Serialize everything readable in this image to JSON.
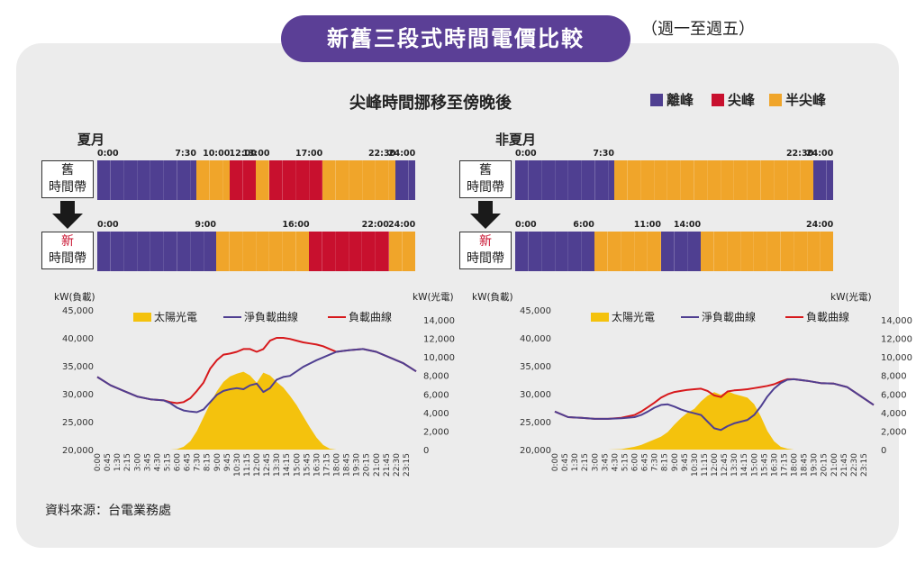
{
  "header": {
    "title": "新舊三段式時間電價比較",
    "note": "（週一至週五）"
  },
  "subtitle": "尖峰時間挪移至傍晚後",
  "legend": [
    {
      "label": "離峰",
      "color": "#4f3f91"
    },
    {
      "label": "尖峰",
      "color": "#c8102e"
    },
    {
      "label": "半尖峰",
      "color": "#f0a52a"
    }
  ],
  "colors": {
    "off": "#4f3f91",
    "peak": "#c8102e",
    "semi": "#f0a52a",
    "solar": "#f4c20d",
    "net": "#4f3f91",
    "load": "#d7191c"
  },
  "labels": {
    "old_band": "舊\n時間帶",
    "new_band_top": "新",
    "new_band_bottom": "時間帶",
    "old_top": "舊",
    "old_bottom": "時間帶"
  },
  "summer": {
    "title": "夏月",
    "old": {
      "ticks": [
        "0:00",
        "7:30",
        "10:00",
        "12:00",
        "13:00",
        "17:00",
        "22:30",
        "24:00"
      ],
      "segments": [
        [
          "off",
          0,
          7.5
        ],
        [
          "semi",
          7.5,
          10
        ],
        [
          "peak",
          10,
          12
        ],
        [
          "semi",
          12,
          13
        ],
        [
          "peak",
          13,
          17
        ],
        [
          "semi",
          17,
          22.5
        ],
        [
          "off",
          22.5,
          24
        ]
      ]
    },
    "new": {
      "ticks": [
        "0:00",
        "9:00",
        "16:00",
        "22:00",
        "24:00"
      ],
      "segments": [
        [
          "off",
          0,
          9
        ],
        [
          "semi",
          9,
          16
        ],
        [
          "peak",
          16,
          22
        ],
        [
          "semi",
          22,
          24
        ]
      ]
    }
  },
  "nonsummer": {
    "title": "非夏月",
    "old": {
      "ticks": [
        "0:00",
        "7:30",
        "22:30",
        "24:00"
      ],
      "segments": [
        [
          "off",
          0,
          7.5
        ],
        [
          "semi",
          7.5,
          22.5
        ],
        [
          "off",
          22.5,
          24
        ]
      ]
    },
    "new": {
      "ticks": [
        "0:00",
        "6:00",
        "11:00",
        "14:00",
        "24:00"
      ],
      "segments": [
        [
          "off",
          0,
          6
        ],
        [
          "semi",
          6,
          11
        ],
        [
          "off",
          11,
          14
        ],
        [
          "semi",
          14,
          24
        ]
      ]
    }
  },
  "axes": {
    "left_unit": "kW(負載)",
    "right_unit": "kW(光電)"
  },
  "chart_legend": {
    "solar": "太陽光電",
    "net": "淨負載曲線",
    "load": "負載曲線"
  },
  "source": "資料來源：台電業務處",
  "chart_data": [
    {
      "type": "line",
      "title": "夏月",
      "ylabel": "kW(負載)",
      "y2label": "kW(光電)",
      "ylim": [
        20000,
        45000
      ],
      "y2lim": [
        0,
        14000
      ],
      "yticks": [
        "45,000",
        "40,000",
        "35,000",
        "30,000",
        "25,000",
        "20,000"
      ],
      "y2ticks": [
        "14,000",
        "12,000",
        "10,000",
        "8,000",
        "6,000",
        "4,000",
        "2,000",
        "0"
      ],
      "xticks": [
        "0:00",
        "0:45",
        "1:30",
        "2:15",
        "3:00",
        "3:45",
        "4:30",
        "5:15",
        "6:00",
        "6:45",
        "7:30",
        "8:15",
        "9:00",
        "9:45",
        "10:30",
        "11:15",
        "12:00",
        "12:45",
        "13:30",
        "14:15",
        "15:00",
        "15:45",
        "16:30",
        "17:15",
        "18:00",
        "18:45",
        "19:30",
        "20:15",
        "21:00",
        "21:45",
        "22:30",
        "23:15"
      ],
      "x_hours": [
        0,
        1,
        2,
        3,
        4,
        5,
        5.5,
        6,
        6.5,
        7,
        7.5,
        8,
        8.5,
        9,
        9.5,
        10,
        10.5,
        11,
        11.5,
        12,
        12.5,
        13,
        13.5,
        14,
        14.5,
        15,
        15.5,
        16,
        16.5,
        17,
        17.5,
        18,
        19,
        20,
        21,
        22,
        23,
        24
      ],
      "series": [
        {
          "name": "負載曲線",
          "axis": "left",
          "values": [
            33000,
            31500,
            30500,
            29500,
            29000,
            28800,
            28500,
            28300,
            28500,
            29200,
            30500,
            32000,
            34500,
            36000,
            37000,
            37200,
            37500,
            38000,
            38000,
            37500,
            38000,
            39500,
            40000,
            40000,
            39800,
            39500,
            39200,
            39000,
            38800,
            38500,
            38000,
            37500,
            37800,
            38000,
            37500,
            36500,
            35500,
            34000
          ]
        },
        {
          "name": "淨負載曲線",
          "axis": "left",
          "values": [
            33000,
            31500,
            30500,
            29500,
            29000,
            28800,
            28300,
            27500,
            27000,
            26800,
            26700,
            27200,
            28500,
            29800,
            30500,
            30800,
            31000,
            30800,
            31500,
            31800,
            30300,
            31000,
            32500,
            33000,
            33200,
            34000,
            34800,
            35400,
            36000,
            36500,
            37000,
            37500,
            37800,
            38000,
            37500,
            36500,
            35500,
            34000
          ]
        },
        {
          "name": "太陽光電",
          "axis": "right",
          "values": [
            0,
            0,
            0,
            0,
            0,
            0,
            0,
            50,
            300,
            900,
            2000,
            3500,
            5000,
            6300,
            7300,
            7900,
            8200,
            8400,
            8000,
            7200,
            8300,
            8000,
            7300,
            6700,
            5800,
            4800,
            3600,
            2400,
            1300,
            500,
            100,
            0,
            0,
            0,
            0,
            0,
            0,
            0
          ]
        }
      ]
    },
    {
      "type": "line",
      "title": "非夏月",
      "ylabel": "kW(負載)",
      "y2label": "kW(光電)",
      "ylim": [
        20000,
        45000
      ],
      "y2lim": [
        0,
        14000
      ],
      "yticks": [
        "45,000",
        "40,000",
        "35,000",
        "30,000",
        "25,000",
        "20,000"
      ],
      "y2ticks": [
        "14,000",
        "12,000",
        "10,000",
        "8,000",
        "6,000",
        "4,000",
        "2,000",
        "0"
      ],
      "xticks": [
        "0:00",
        "0:45",
        "1:30",
        "2:15",
        "3:00",
        "3:45",
        "4:30",
        "5:15",
        "6:00",
        "6:45",
        "7:30",
        "8:15",
        "9:00",
        "9:45",
        "10:30",
        "11:15",
        "12:00",
        "12:45",
        "13:30",
        "14:15",
        "15:00",
        "15:45",
        "16:30",
        "17:15",
        "18:00",
        "18:45",
        "19:30",
        "20:15",
        "21:00",
        "21:45",
        "22:30",
        "23:15"
      ],
      "x_hours": [
        0,
        1,
        2,
        3,
        4,
        5,
        6,
        6.5,
        7,
        7.5,
        8,
        8.5,
        9,
        9.5,
        10,
        10.5,
        11,
        11.5,
        12,
        12.5,
        13,
        13.5,
        14,
        14.5,
        15,
        15.5,
        16,
        16.5,
        17,
        17.5,
        18,
        19,
        20,
        21,
        22,
        23,
        24
      ],
      "series": [
        {
          "name": "負載曲線",
          "axis": "left",
          "values": [
            26800,
            25800,
            25700,
            25500,
            25500,
            25700,
            26200,
            26800,
            27600,
            28400,
            29300,
            29900,
            30300,
            30500,
            30700,
            30800,
            30900,
            30500,
            29700,
            29400,
            30400,
            30600,
            30700,
            30800,
            31000,
            31200,
            31400,
            31700,
            32200,
            32600,
            32600,
            32300,
            31900,
            31800,
            31200,
            29600,
            28000
          ]
        },
        {
          "name": "淨負載曲線",
          "axis": "left",
          "values": [
            26800,
            25800,
            25700,
            25500,
            25500,
            25600,
            25800,
            26200,
            26800,
            27500,
            28000,
            28100,
            27700,
            27200,
            26800,
            26500,
            26200,
            25000,
            23800,
            23500,
            24200,
            24700,
            25000,
            25300,
            26200,
            27700,
            29500,
            30900,
            31900,
            32500,
            32600,
            32300,
            31900,
            31800,
            31200,
            29600,
            28000
          ]
        },
        {
          "name": "太陽光電",
          "axis": "right",
          "values": [
            0,
            0,
            0,
            0,
            0,
            50,
            300,
            500,
            800,
            1100,
            1400,
            1900,
            2700,
            3400,
            4000,
            4400,
            5200,
            5800,
            6200,
            5900,
            6300,
            6000,
            5800,
            5600,
            4900,
            3600,
            2000,
            900,
            300,
            100,
            0,
            0,
            0,
            0,
            0,
            0,
            0
          ]
        }
      ]
    }
  ]
}
